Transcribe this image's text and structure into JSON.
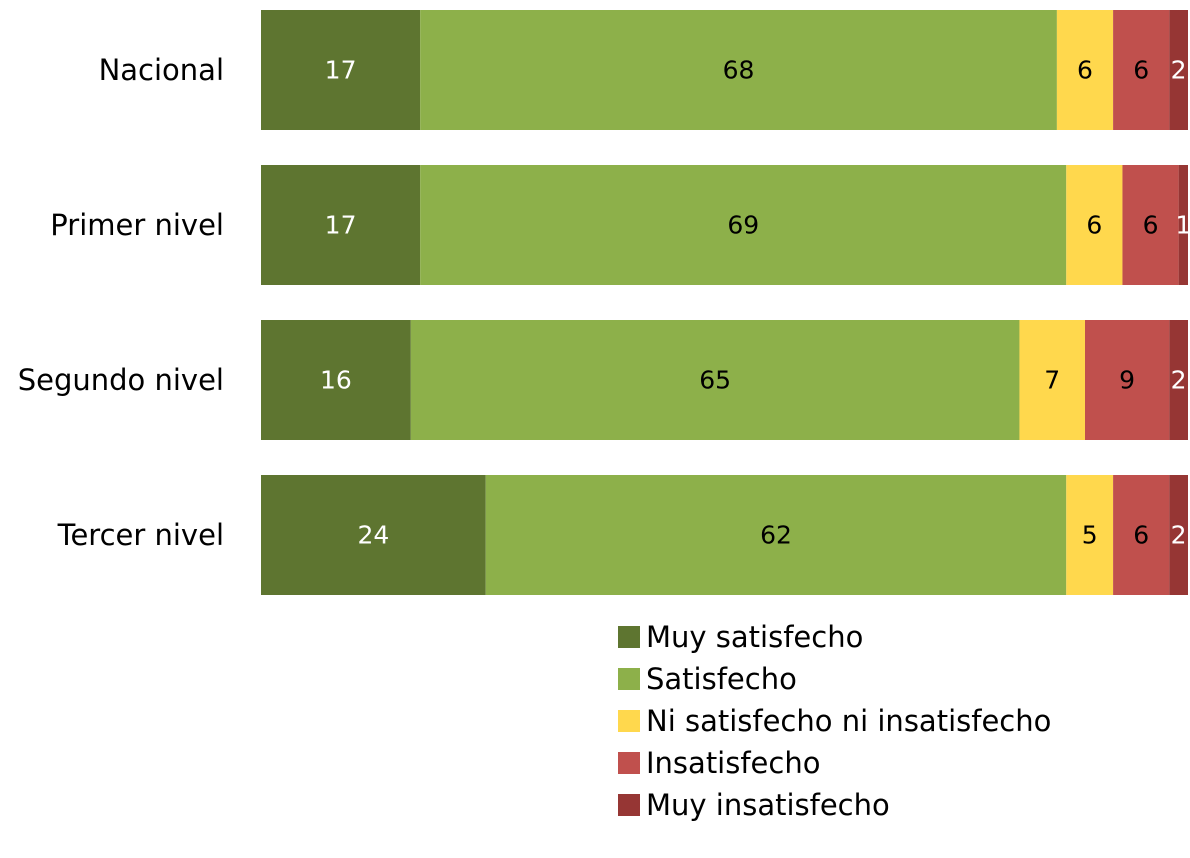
{
  "chart_data": {
    "type": "bar",
    "orientation": "horizontal",
    "stacked": true,
    "categories": [
      "Nacional",
      "Primer nivel",
      "Segundo nivel",
      "Tercer nivel"
    ],
    "series": [
      {
        "name": "Muy satisfecho",
        "color": "#5E7530",
        "label_color": "#ffffff",
        "values": [
          17,
          17,
          16,
          24
        ]
      },
      {
        "name": "Satisfecho",
        "color": "#8DB04A",
        "label_color": "#000000",
        "values": [
          68,
          69,
          65,
          62
        ]
      },
      {
        "name": "Ni satisfecho ni insatisfecho",
        "color": "#FFD84D",
        "label_color": "#000000",
        "values": [
          6,
          6,
          7,
          5
        ]
      },
      {
        "name": "Insatisfecho",
        "color": "#C0504D",
        "label_color": "#000000",
        "values": [
          6,
          6,
          9,
          6
        ]
      },
      {
        "name": "Muy insatisfecho",
        "color": "#963634",
        "label_color": "#ffffff",
        "values": [
          2,
          1,
          2,
          2
        ]
      }
    ],
    "title": "",
    "xlabel": "",
    "ylabel": "",
    "grid": false,
    "legend_position": "bottom"
  }
}
